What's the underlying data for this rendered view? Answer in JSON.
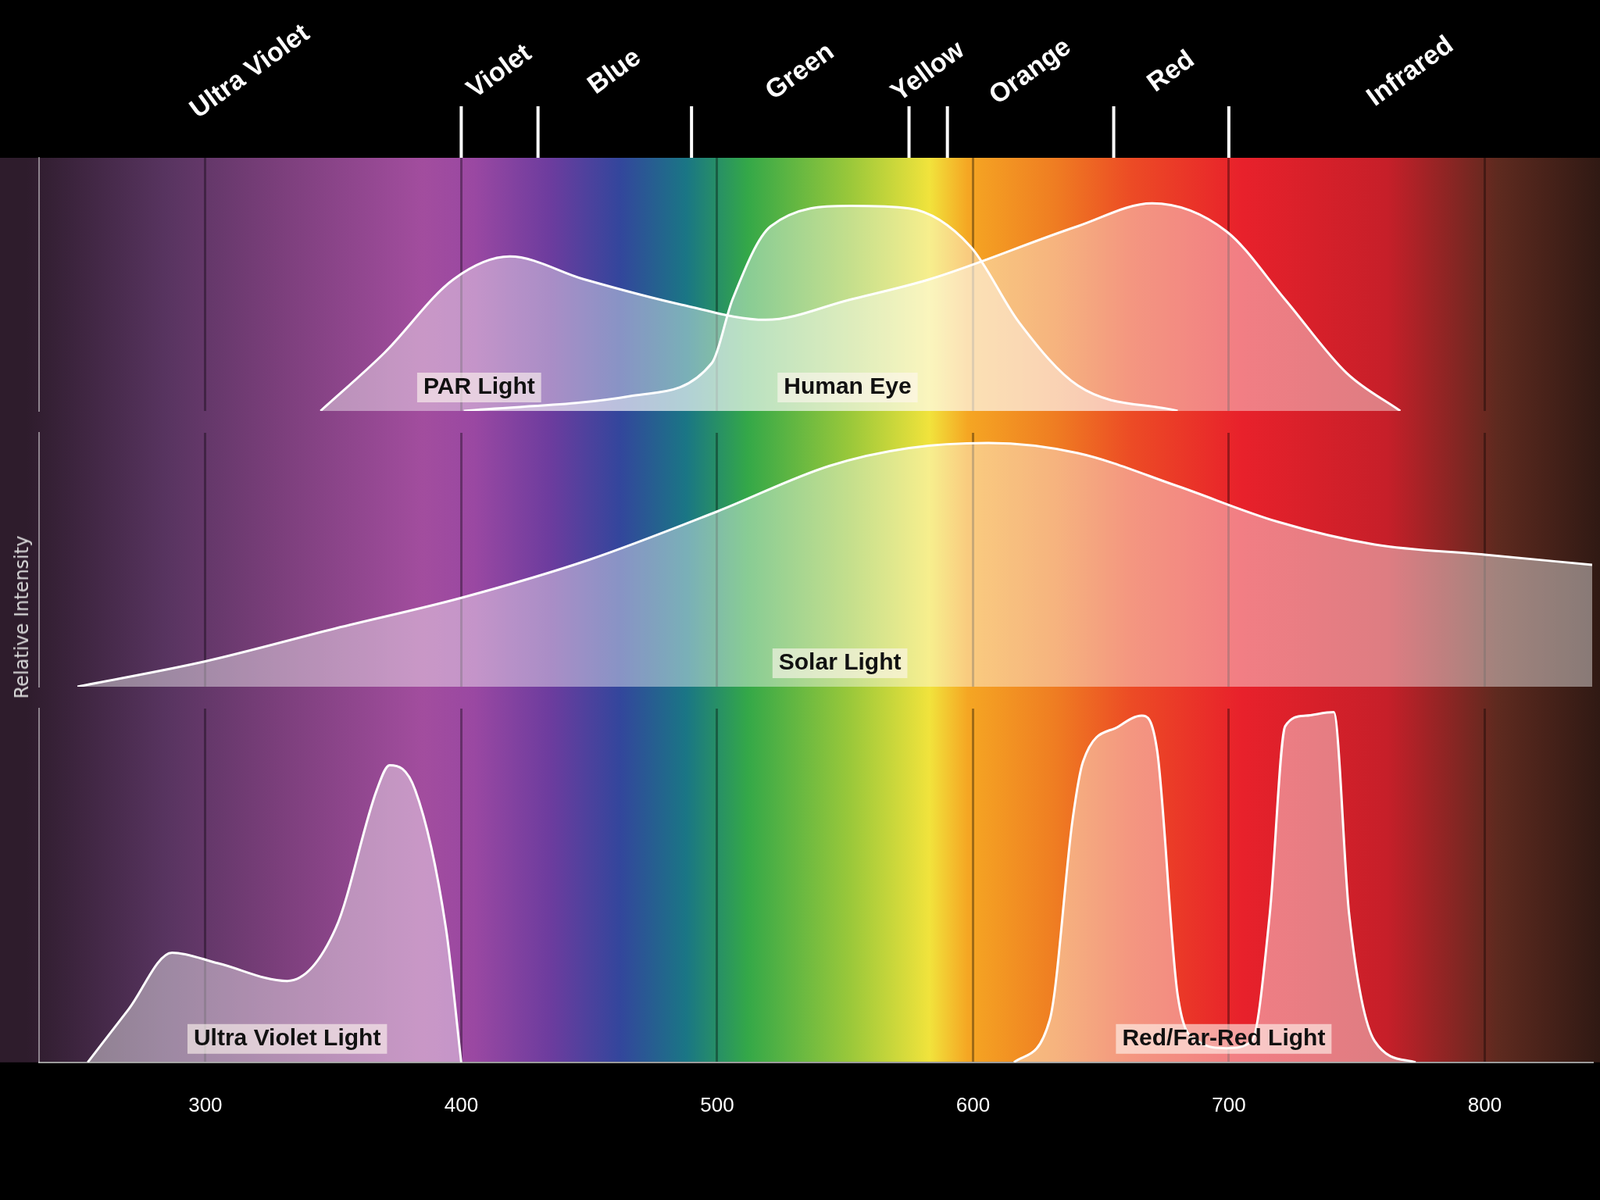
{
  "chart_data": {
    "type": "area",
    "xlim": [
      235,
      842
    ],
    "xticks": [
      300,
      400,
      500,
      600,
      700,
      800
    ],
    "ylim": [
      0,
      100
    ],
    "y2lim": [
      0,
      100
    ],
    "y3lim": [
      0,
      100
    ],
    "ylabel": "Relative Intensity",
    "grid": true,
    "tick_labels": "x",
    "bands": [
      "Ultra Violet",
      "Violet",
      "Blue",
      "Green",
      "Yellow",
      "Orange",
      "Red",
      "Infrared"
    ],
    "band_edges": [
      400,
      430,
      490,
      575,
      590,
      655,
      700
    ],
    "series": [
      {
        "name": "PAR Light",
        "color": "#ffffff",
        "axis": "y",
        "x": [
          345,
          370,
          397,
          419,
          448,
          486,
          519,
          552,
          583,
          641,
          670,
          699,
          722,
          746,
          767
        ],
        "values": [
          0,
          23,
          52,
          61,
          52,
          42,
          36,
          44,
          52,
          73,
          82,
          71,
          44,
          15,
          0
        ]
      },
      {
        "name": "Human Eye",
        "color": "#ffffff",
        "axis": "y",
        "x": [
          401,
          467,
          498,
          506,
          521,
          552,
          575,
          599,
          618,
          641,
          680
        ],
        "values": [
          0,
          6,
          19,
          44,
          73,
          81,
          80,
          65,
          35,
          10,
          0
        ]
      },
      {
        "name": "Solar Light",
        "color": "#ffffff",
        "axis": "y2",
        "x": [
          250,
          300,
          351,
          400,
          450,
          500,
          544,
          575,
          606,
          641,
          680,
          719,
          757,
          800,
          842
        ],
        "values": [
          0,
          10,
          23,
          35,
          50,
          69,
          87,
          94,
          96,
          92,
          79,
          65,
          56,
          52,
          48
        ]
      },
      {
        "name": "Ultra Violet Light",
        "color": "#ffffff",
        "axis": "y3",
        "x": [
          254,
          270,
          287,
          305,
          332,
          351,
          367,
          372,
          382,
          394,
          400
        ],
        "values": [
          0,
          15,
          31,
          28,
          23,
          38,
          77,
          84,
          77,
          38,
          0
        ]
      },
      {
        "name": "Red/Far-Red Light",
        "color": "#ffffff",
        "axis": "y3",
        "x": [
          616,
          630,
          639,
          643,
          657,
          666,
          672,
          680,
          688,
          699,
          709,
          716,
          722,
          730,
          741,
          747,
          757,
          773
        ],
        "values": [
          0,
          12,
          69,
          85,
          95,
          98,
          88,
          19,
          6,
          4,
          6,
          42,
          95,
          98,
          99,
          42,
          6,
          0
        ]
      }
    ]
  }
}
